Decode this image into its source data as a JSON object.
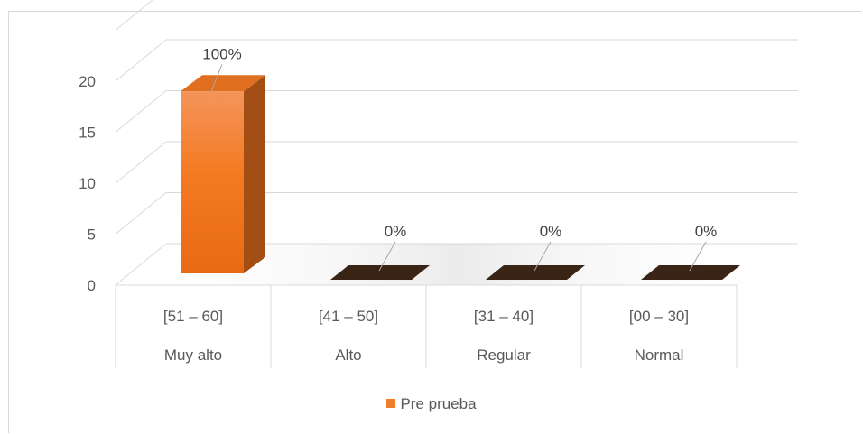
{
  "chart_data": {
    "type": "bar",
    "three_d": true,
    "categories": [
      {
        "range": "[51 – 60]",
        "level": "Muy alto"
      },
      {
        "range": "[41 – 50]",
        "level": "Alto"
      },
      {
        "range": "[31 – 40]",
        "level": "Regular"
      },
      {
        "range": "[00 – 30]",
        "level": "Normal"
      }
    ],
    "series": [
      {
        "name": "Pre prueba",
        "color": "#F07F2C",
        "values": [
          19,
          0,
          0,
          0
        ],
        "labels": [
          "100%",
          "0%",
          "0%",
          "0%"
        ]
      }
    ],
    "yticks": [
      "0",
      "5",
      "10",
      "15",
      "20"
    ],
    "ylim": [
      0,
      25
    ],
    "grid": true,
    "legend": "bottom-center"
  }
}
